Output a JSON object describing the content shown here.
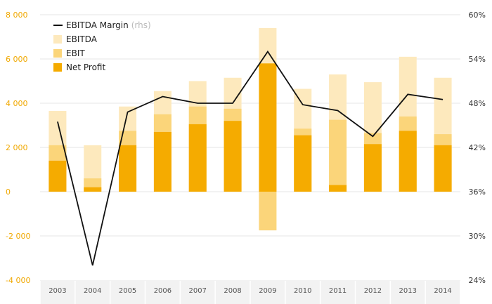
{
  "chart_data": {
    "type": "bar",
    "categories": [
      "2003",
      "2004",
      "2005",
      "2006",
      "2007",
      "2008",
      "2009",
      "2010",
      "2011",
      "2012",
      "2013",
      "2014"
    ],
    "series": [
      {
        "name": "EBITDA",
        "kind": "bar",
        "axis": "left",
        "color": "#fde9bd",
        "values": [
          3650,
          2100,
          3850,
          4550,
          5000,
          5150,
          7400,
          4650,
          5300,
          4950,
          6100,
          5150
        ]
      },
      {
        "name": "EBIT",
        "kind": "bar",
        "axis": "left",
        "color": "#fbd57a",
        "values": [
          2100,
          600,
          2750,
          3500,
          3850,
          3750,
          -1750,
          2850,
          3250,
          2650,
          3400,
          2600
        ]
      },
      {
        "name": "Net Profit",
        "kind": "bar",
        "axis": "left",
        "color": "#f5ab00",
        "values": [
          1400,
          200,
          2100,
          2700,
          3050,
          3200,
          5800,
          2550,
          300,
          2150,
          2750,
          2100
        ]
      },
      {
        "name": "EBITDA Margin",
        "kind": "line",
        "axis": "right",
        "color": "#111111",
        "values": [
          45.5,
          26.0,
          46.8,
          48.9,
          48.0,
          48.0,
          55.0,
          47.8,
          47.0,
          43.5,
          49.2,
          48.5
        ]
      }
    ],
    "y_left": {
      "ylim": [
        -4000,
        8000
      ],
      "ticks": [
        -4000,
        -2000,
        0,
        2000,
        4000,
        6000,
        8000
      ],
      "tick_labels": [
        "-4 000",
        "-2 000",
        "0",
        "2 000",
        "4 000",
        "6 000",
        "8 000"
      ]
    },
    "y_right": {
      "ylim": [
        24,
        60
      ],
      "ticks": [
        24,
        30,
        36,
        42,
        48,
        54,
        60
      ],
      "tick_labels": [
        "24%",
        "30%",
        "36%",
        "42%",
        "48%",
        "54%",
        "60%"
      ]
    },
    "legend": {
      "placement": "top-left",
      "items": [
        {
          "label": "EBITDA Margin",
          "note": "(rhs)",
          "marker": "line",
          "color": "#111111"
        },
        {
          "label": "EBITDA",
          "marker": "square",
          "color": "#fde9bd"
        },
        {
          "label": "EBIT",
          "marker": "square",
          "color": "#fbd57a"
        },
        {
          "label": "Net Profit",
          "marker": "square",
          "color": "#f5ab00"
        }
      ]
    },
    "colors": {
      "left_axis_text": "#f0a800",
      "gridline": "#e6e6e6",
      "xaxis_band": "#f2f2f2"
    },
    "grid": true,
    "title": "",
    "xlabel": "",
    "ylabel": ""
  }
}
